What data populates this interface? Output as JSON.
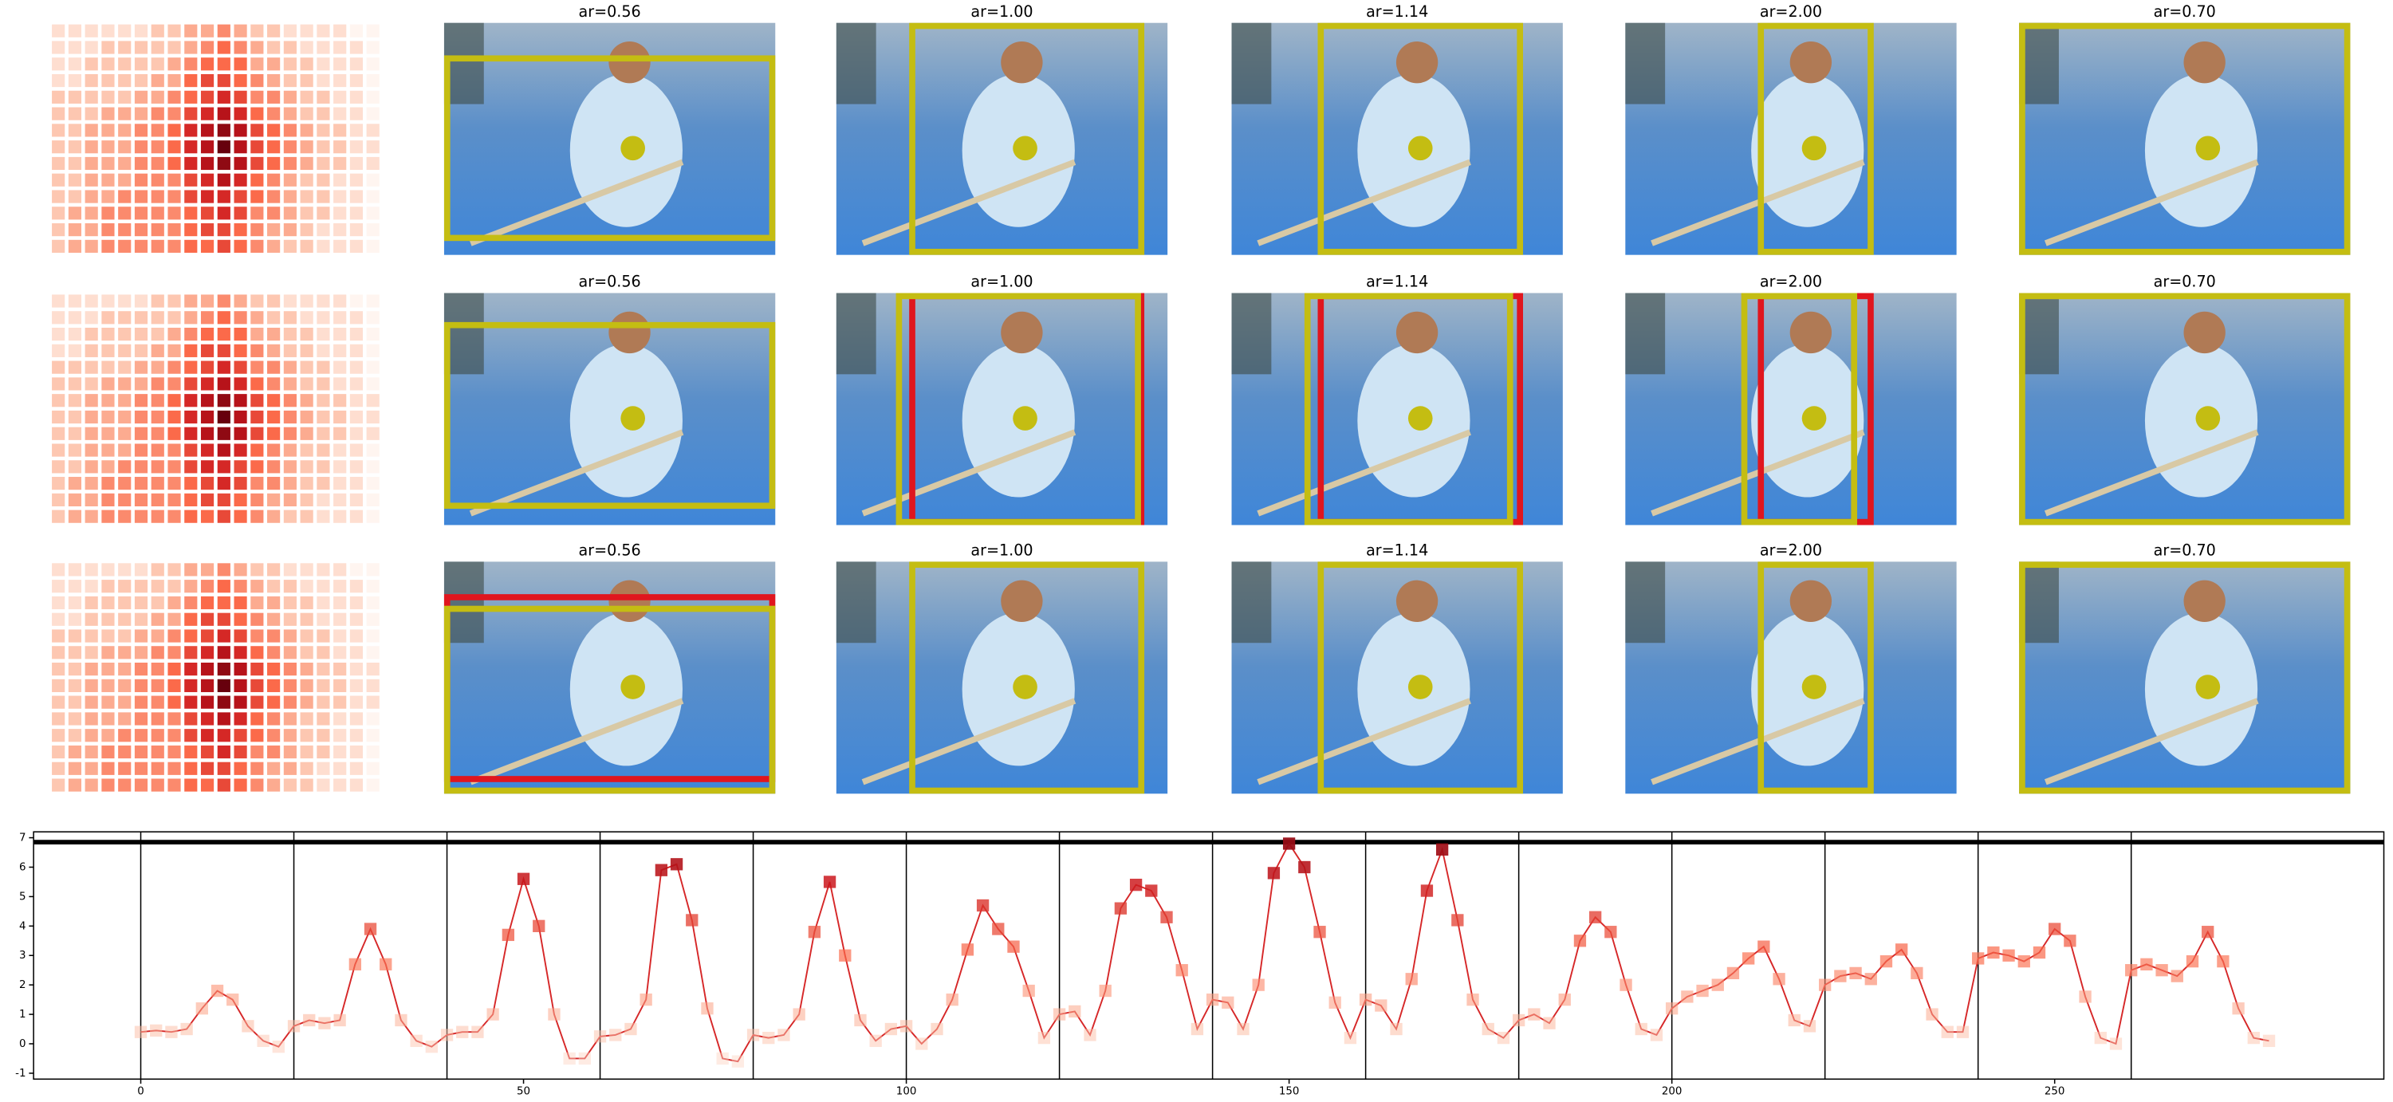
{
  "rows": [
    {
      "titles": [
        "ar=0.56",
        "ar=1.00",
        "ar=1.14",
        "ar=2.00",
        "ar=0.70"
      ]
    },
    {
      "titles": [
        "ar=0.56",
        "ar=1.00",
        "ar=1.14",
        "ar=2.00",
        "ar=0.70"
      ]
    },
    {
      "titles": [
        "ar=0.56",
        "ar=1.00",
        "ar=1.14",
        "ar=2.00",
        "ar=0.70"
      ]
    }
  ],
  "heatmap": [
    [
      0.1,
      0.1,
      0.1,
      0.1,
      0.1,
      0.1,
      0.2,
      0.2,
      0.3,
      0.3,
      0.4,
      0.3,
      0.2,
      0.2,
      0.1,
      0.1,
      0.1,
      0.1,
      0,
      0
    ],
    [
      0.1,
      0.1,
      0.1,
      0.2,
      0.2,
      0.2,
      0.2,
      0.2,
      0.3,
      0.4,
      0.5,
      0.4,
      0.3,
      0.2,
      0.2,
      0.1,
      0.1,
      0.1,
      0.1,
      0
    ],
    [
      0.1,
      0.1,
      0.2,
      0.2,
      0.2,
      0.2,
      0.2,
      0.3,
      0.4,
      0.5,
      0.5,
      0.5,
      0.3,
      0.3,
      0.2,
      0.2,
      0.1,
      0.1,
      0.1,
      0
    ],
    [
      0.1,
      0.1,
      0.2,
      0.2,
      0.2,
      0.2,
      0.3,
      0.3,
      0.5,
      0.6,
      0.6,
      0.5,
      0.4,
      0.3,
      0.2,
      0.2,
      0.1,
      0.1,
      0.1,
      0
    ],
    [
      0.2,
      0.2,
      0.2,
      0.2,
      0.2,
      0.3,
      0.3,
      0.4,
      0.5,
      0.6,
      0.7,
      0.6,
      0.4,
      0.4,
      0.3,
      0.2,
      0.2,
      0.1,
      0.1,
      0
    ],
    [
      0.2,
      0.2,
      0.2,
      0.3,
      0.3,
      0.3,
      0.4,
      0.4,
      0.6,
      0.7,
      0.8,
      0.7,
      0.5,
      0.4,
      0.3,
      0.2,
      0.2,
      0.1,
      0.1,
      0
    ],
    [
      0.2,
      0.2,
      0.3,
      0.3,
      0.3,
      0.4,
      0.4,
      0.5,
      0.7,
      0.8,
      0.9,
      0.8,
      0.6,
      0.5,
      0.4,
      0.3,
      0.2,
      0.2,
      0.1,
      0.1
    ],
    [
      0.2,
      0.2,
      0.3,
      0.3,
      0.3,
      0.4,
      0.4,
      0.5,
      0.7,
      0.8,
      1,
      0.8,
      0.6,
      0.5,
      0.4,
      0.3,
      0.2,
      0.2,
      0.1,
      0.1
    ],
    [
      0.2,
      0.2,
      0.3,
      0.3,
      0.3,
      0.4,
      0.4,
      0.5,
      0.7,
      0.8,
      0.9,
      0.8,
      0.6,
      0.5,
      0.4,
      0.3,
      0.2,
      0.2,
      0.1,
      0.1
    ],
    [
      0.2,
      0.2,
      0.3,
      0.3,
      0.3,
      0.4,
      0.4,
      0.4,
      0.6,
      0.7,
      0.8,
      0.7,
      0.5,
      0.4,
      0.3,
      0.2,
      0.2,
      0.1,
      0.1,
      0
    ],
    [
      0.2,
      0.2,
      0.3,
      0.3,
      0.4,
      0.4,
      0.4,
      0.4,
      0.6,
      0.7,
      0.7,
      0.6,
      0.5,
      0.4,
      0.3,
      0.2,
      0.2,
      0.1,
      0.1,
      0
    ],
    [
      0.2,
      0.3,
      0.3,
      0.4,
      0.4,
      0.4,
      0.4,
      0.4,
      0.5,
      0.6,
      0.7,
      0.6,
      0.4,
      0.4,
      0.3,
      0.2,
      0.2,
      0.1,
      0.1,
      0
    ],
    [
      0.2,
      0.3,
      0.3,
      0.4,
      0.4,
      0.4,
      0.4,
      0.4,
      0.5,
      0.6,
      0.6,
      0.5,
      0.4,
      0.3,
      0.3,
      0.2,
      0.1,
      0.1,
      0.1,
      0
    ],
    [
      0.2,
      0.3,
      0.3,
      0.4,
      0.4,
      0.4,
      0.4,
      0.4,
      0.5,
      0.5,
      0.6,
      0.5,
      0.4,
      0.3,
      0.2,
      0.2,
      0.1,
      0.1,
      0.1,
      0
    ]
  ],
  "chart_data": {
    "type": "line",
    "color": "#d62728",
    "x": [
      0,
      2,
      4,
      6,
      8,
      10,
      12,
      14,
      16,
      18,
      20,
      22,
      24,
      26,
      28,
      30,
      32,
      34,
      36,
      38,
      40,
      42,
      44,
      46,
      48,
      50,
      52,
      54,
      56,
      58,
      60,
      62,
      64,
      66,
      68,
      70,
      72,
      74,
      76,
      78,
      80,
      82,
      84,
      86,
      88,
      90,
      92,
      94,
      96,
      98,
      100,
      102,
      104,
      106,
      108,
      110,
      112,
      114,
      116,
      118,
      120,
      122,
      124,
      126,
      128,
      130,
      132,
      134,
      136,
      138,
      140,
      142,
      144,
      146,
      148,
      150,
      152,
      154,
      156,
      158,
      160,
      162,
      164,
      166,
      168,
      170,
      172,
      174,
      176,
      178,
      180,
      182,
      184,
      186,
      188,
      190,
      192,
      194,
      196,
      198,
      200,
      202,
      204,
      206,
      208,
      210,
      212,
      214,
      216,
      218,
      220,
      222,
      224,
      226,
      228,
      230,
      232,
      234,
      236,
      238,
      240,
      242,
      244,
      246,
      248,
      250,
      252,
      254,
      256,
      258,
      260,
      262,
      264,
      266,
      268,
      270,
      272,
      274,
      276,
      278
    ],
    "values": [
      0.4,
      0.45,
      0.4,
      0.5,
      1.2,
      1.8,
      1.5,
      0.6,
      0.1,
      -0.1,
      0.6,
      0.8,
      0.7,
      0.8,
      2.7,
      3.9,
      2.7,
      0.8,
      0.1,
      -0.1,
      0.3,
      0.4,
      0.4,
      1.0,
      3.7,
      5.6,
      4.0,
      1.0,
      -0.5,
      -0.5,
      0.25,
      0.3,
      0.5,
      1.5,
      5.9,
      6.1,
      4.2,
      1.2,
      -0.5,
      -0.6,
      0.3,
      0.2,
      0.3,
      1.0,
      3.8,
      5.5,
      3.0,
      0.8,
      0.1,
      0.5,
      0.6,
      0.0,
      0.5,
      1.5,
      3.2,
      4.7,
      3.9,
      3.3,
      1.8,
      0.2,
      1.0,
      1.1,
      0.3,
      1.8,
      4.6,
      5.4,
      5.2,
      4.3,
      2.5,
      0.5,
      1.5,
      1.4,
      0.5,
      2.0,
      5.8,
      6.8,
      6.0,
      3.8,
      1.4,
      0.2,
      1.5,
      1.3,
      0.5,
      2.2,
      5.2,
      6.6,
      4.2,
      1.5,
      0.5,
      0.2,
      0.8,
      1.0,
      0.7,
      1.5,
      3.5,
      4.3,
      3.8,
      2.0,
      0.5,
      0.3,
      1.2,
      1.6,
      1.8,
      2.0,
      2.4,
      2.9,
      3.3,
      2.2,
      0.8,
      0.6,
      2.0,
      2.3,
      2.4,
      2.2,
      2.8,
      3.2,
      2.4,
      1.0,
      0.4,
      0.4,
      2.9,
      3.1,
      3.0,
      2.8,
      3.1,
      3.9,
      3.5,
      1.6,
      0.2,
      0.0,
      2.5,
      2.7,
      2.5,
      2.3,
      2.8,
      3.8,
      2.8,
      1.2,
      0.2,
      0.1
    ],
    "xlim": [
      -14,
      293
    ],
    "ylim": [
      -1.2,
      7.2
    ],
    "xticks": [
      0,
      50,
      100,
      150,
      200,
      250
    ],
    "yticks": [
      -1,
      0,
      1,
      2,
      3,
      4,
      5,
      6,
      7
    ],
    "hline": 6.85,
    "vlines": [
      0,
      20,
      40,
      60,
      80,
      100,
      120,
      140,
      160,
      180,
      200,
      220,
      240,
      260
    ]
  }
}
